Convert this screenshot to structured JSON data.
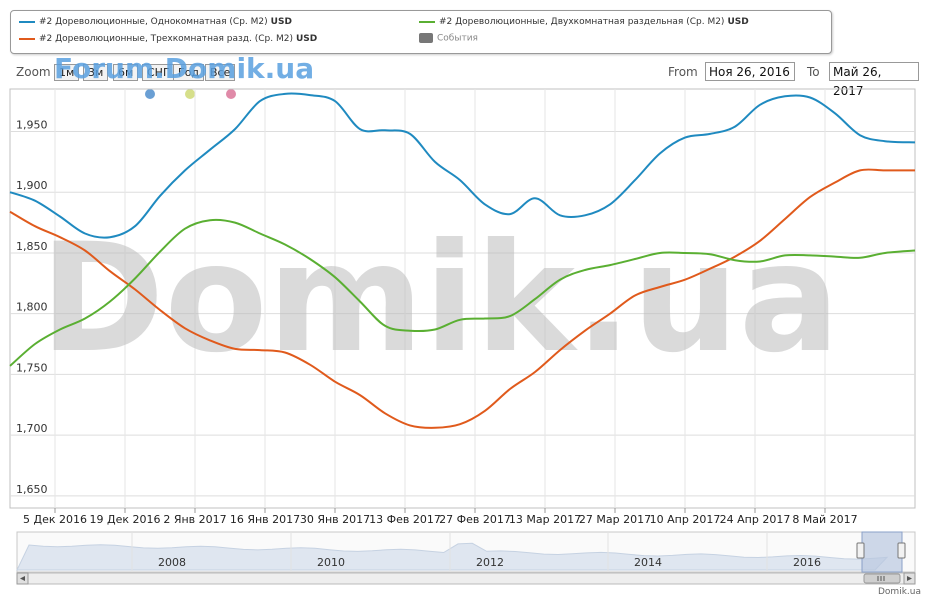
{
  "legend": {
    "items": [
      {
        "label": "#2 Дореволюционные, Однокомнатная (Ср. М2)",
        "unit": "USD",
        "color": "#1f8ac0"
      },
      {
        "label": "#2 Дореволюционные, Трехкомнатная разд. (Ср. М2)",
        "unit": "USD",
        "color": "#e05a1c"
      },
      {
        "label": "#2 Дореволюционные, Двухкомнатная раздельная (Ср. М2)",
        "unit": "USD",
        "color": "#5aaf32"
      },
      {
        "label": "События",
        "unit": "",
        "color": "#777777"
      }
    ]
  },
  "toolbar": {
    "zoom_label": "Zoom",
    "zoom_buttons": [
      "1м",
      "3м",
      "6м",
      "СНГ",
      "Год",
      "Все"
    ],
    "from_label": "From",
    "from_value": "Ноя 26, 2016",
    "to_label": "To",
    "to_value": "Май 26, 2017"
  },
  "watermarks": {
    "top": "Forum.Domik.ua",
    "big": "Domik.ua"
  },
  "credit": "Domik.ua",
  "event_dot_colors": [
    "#6a9fd4",
    "#d6df8a",
    "#e08aa8"
  ],
  "navigator": {
    "year_labels": [
      "2008",
      "2010",
      "2012",
      "2014",
      "2016"
    ]
  },
  "chart_data": {
    "type": "line",
    "x_tick_labels": [
      "5 Дек 2016",
      "19 Дек 2016",
      "2 Янв 2017",
      "16 Янв 2017",
      "30 Янв 2017",
      "13 Фев 2017",
      "27 Фев 2017",
      "13 Мар 2017",
      "27 Мар 2017",
      "10 Апр 2017",
      "24 Апр 2017",
      "8 Май 2017"
    ],
    "y_tick_labels": [
      "1,650",
      "1,700",
      "1,750",
      "1,800",
      "1,850",
      "1,900",
      "1,950"
    ],
    "ylim": [
      1640,
      1985
    ],
    "x": [
      "2016-11-26",
      "2016-12-01",
      "2016-12-06",
      "2016-12-11",
      "2016-12-16",
      "2016-12-21",
      "2016-12-26",
      "2016-12-31",
      "2017-01-05",
      "2017-01-10",
      "2017-01-15",
      "2017-01-20",
      "2017-01-25",
      "2017-01-30",
      "2017-02-04",
      "2017-02-09",
      "2017-02-14",
      "2017-02-19",
      "2017-02-24",
      "2017-03-01",
      "2017-03-06",
      "2017-03-11",
      "2017-03-16",
      "2017-03-21",
      "2017-03-26",
      "2017-03-31",
      "2017-04-05",
      "2017-04-10",
      "2017-04-15",
      "2017-04-20",
      "2017-04-25",
      "2017-04-30",
      "2017-05-05",
      "2017-05-10",
      "2017-05-15",
      "2017-05-20",
      "2017-05-26"
    ],
    "series": [
      {
        "name": "#2 Дореволюционные, Однокомнатная (Ср. М2)",
        "color": "#1f8ac0",
        "values": [
          1900,
          1893,
          1880,
          1866,
          1863,
          1872,
          1897,
          1918,
          1935,
          1952,
          1975,
          1981,
          1980,
          1975,
          1952,
          1951,
          1948,
          1925,
          1910,
          1890,
          1882,
          1895,
          1881,
          1881,
          1890,
          1910,
          1932,
          1945,
          1948,
          1954,
          1972,
          1979,
          1978,
          1965,
          1947,
          1942,
          1941
        ]
      },
      {
        "name": "#2 Дореволюционные, Трехкомнатная разд. (Ср. М2)",
        "color": "#e05a1c",
        "values": [
          1884,
          1872,
          1863,
          1852,
          1835,
          1820,
          1803,
          1788,
          1778,
          1771,
          1770,
          1768,
          1758,
          1744,
          1733,
          1718,
          1708,
          1706,
          1709,
          1720,
          1738,
          1752,
          1770,
          1786,
          1800,
          1815,
          1822,
          1828,
          1837,
          1847,
          1860,
          1878,
          1896,
          1908,
          1918,
          1918,
          1918
        ]
      },
      {
        "name": "#2 Дореволюционные, Двухкомнатная раздельная (Ср. М2)",
        "color": "#5aaf32",
        "values": [
          1757,
          1775,
          1787,
          1796,
          1810,
          1829,
          1851,
          1870,
          1877,
          1875,
          1866,
          1857,
          1845,
          1830,
          1810,
          1790,
          1786,
          1787,
          1795,
          1796,
          1798,
          1812,
          1828,
          1836,
          1840,
          1845,
          1850,
          1850,
          1849,
          1844,
          1843,
          1848,
          1848,
          1847,
          1846,
          1850,
          1852
        ]
      }
    ],
    "grid": true
  }
}
